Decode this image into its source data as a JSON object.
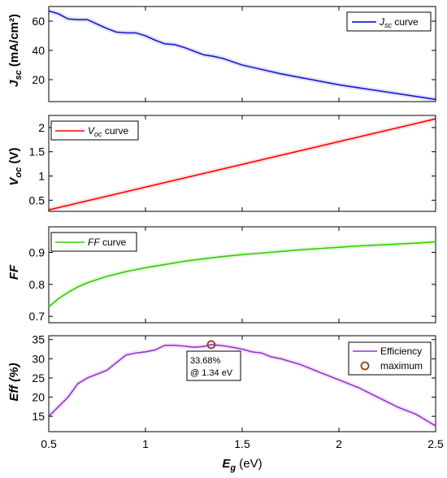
{
  "chart_data": [
    {
      "type": "line",
      "ylabel": "J_sc (mA/cm²)",
      "xlim": [
        0.5,
        2.5
      ],
      "ylim": [
        5,
        70
      ],
      "yticks": [
        20,
        40,
        60
      ],
      "legend": {
        "placement": "top-right",
        "entries": [
          {
            "label": "J_sc curve",
            "color": "#0000cc"
          }
        ]
      },
      "series": [
        {
          "name": "J_sc curve",
          "color": "#1a1acc",
          "x": [
            0.5,
            0.55,
            0.6,
            0.65,
            0.7,
            0.75,
            0.8,
            0.85,
            0.9,
            0.95,
            1.0,
            1.05,
            1.1,
            1.15,
            1.2,
            1.25,
            1.3,
            1.35,
            1.4,
            1.5,
            1.6,
            1.7,
            1.8,
            1.9,
            2.0,
            2.1,
            2.2,
            2.3,
            2.4,
            2.5
          ],
          "y": [
            67,
            65,
            61.5,
            61,
            61,
            58,
            55,
            52.5,
            52,
            52,
            50,
            47,
            44.5,
            44,
            42,
            39.5,
            37,
            36,
            34.5,
            30,
            27,
            24,
            21.5,
            19,
            16.5,
            14.5,
            12.5,
            10.5,
            8.5,
            6.5
          ]
        }
      ]
    },
    {
      "type": "line",
      "ylabel": "V_oc (V)",
      "xlim": [
        0.5,
        2.5
      ],
      "ylim": [
        0.27,
        2.25
      ],
      "yticks": [
        0.5,
        1,
        1.5,
        2
      ],
      "ytick_labels": [
        "0.5",
        "1",
        "1.5",
        "2"
      ],
      "legend": {
        "placement": "top-left",
        "entries": [
          {
            "label": "V_oc curve",
            "color": "#ff0000"
          }
        ]
      },
      "series": [
        {
          "name": "V_oc curve",
          "color": "#ff0000",
          "x": [
            0.5,
            2.5
          ],
          "y": [
            0.3,
            2.18
          ]
        }
      ]
    },
    {
      "type": "line",
      "ylabel": "FF",
      "xlim": [
        0.5,
        2.5
      ],
      "ylim": [
        0.68,
        0.98
      ],
      "yticks": [
        0.7,
        0.8,
        0.9
      ],
      "legend": {
        "placement": "top-left",
        "entries": [
          {
            "label": "FF curve",
            "color": "#33cc00"
          }
        ]
      },
      "series": [
        {
          "name": "FF curve",
          "color": "#33cc00",
          "x": [
            0.5,
            0.55,
            0.6,
            0.65,
            0.7,
            0.8,
            0.9,
            1.0,
            1.1,
            1.2,
            1.3,
            1.4,
            1.5,
            1.6,
            1.7,
            1.8,
            1.9,
            2.0,
            2.1,
            2.2,
            2.3,
            2.4,
            2.5
          ],
          "y": [
            0.73,
            0.755,
            0.775,
            0.792,
            0.805,
            0.825,
            0.84,
            0.852,
            0.862,
            0.872,
            0.88,
            0.887,
            0.893,
            0.898,
            0.903,
            0.908,
            0.912,
            0.916,
            0.92,
            0.923,
            0.926,
            0.929,
            0.933
          ]
        }
      ]
    },
    {
      "type": "line",
      "ylabel": "Eff (%)",
      "xlabel": "E_g (eV)",
      "xlim": [
        0.5,
        2.5
      ],
      "ylim": [
        11,
        36
      ],
      "yticks": [
        15,
        20,
        25,
        30,
        35
      ],
      "xticks": [
        0.5,
        1,
        1.5,
        2,
        2.5
      ],
      "xtick_labels": [
        "0.5",
        "1",
        "1.5",
        "2",
        "2.5"
      ],
      "legend": {
        "placement": "top-right",
        "entries": [
          {
            "label": "Efficiency",
            "color": "#9933cc"
          },
          {
            "label": "maximum",
            "color": "#8b4513",
            "marker": "circle"
          }
        ]
      },
      "series": [
        {
          "name": "Efficiency",
          "color": "#9933cc",
          "x": [
            0.5,
            0.55,
            0.6,
            0.65,
            0.7,
            0.75,
            0.8,
            0.85,
            0.9,
            0.95,
            1.0,
            1.05,
            1.1,
            1.15,
            1.2,
            1.25,
            1.3,
            1.34,
            1.4,
            1.45,
            1.5,
            1.55,
            1.6,
            1.65,
            1.7,
            1.8,
            1.9,
            2.0,
            2.1,
            2.2,
            2.3,
            2.4,
            2.5
          ],
          "y": [
            15,
            17.5,
            20,
            23.5,
            25,
            26,
            27,
            29,
            31,
            31.5,
            31.8,
            32.3,
            33.5,
            33.5,
            33.3,
            33,
            33.2,
            33.68,
            33.4,
            33,
            32.5,
            31.8,
            31.5,
            30.5,
            30,
            28.5,
            26.5,
            24.5,
            22.5,
            20,
            17.5,
            15.5,
            12.5
          ]
        }
      ],
      "annotation": {
        "x": 1.34,
        "y": 33.68,
        "value_text": "33.68%",
        "at_text": "@ 1.34 eV"
      }
    }
  ],
  "text": {
    "jsc_sym": "J",
    "jsc_sub": "sc",
    "jsc_unit": " (mA/cm²)",
    "jsc_legend_sym": "J",
    "jsc_legend_sub": "sc",
    "jsc_legend_rest": " curve",
    "voc_sym": "V",
    "voc_sub": "oc",
    "voc_unit": " (V)",
    "voc_legend_sym": "V",
    "voc_legend_sub": "oc",
    "voc_legend_rest": " curve",
    "ff_label": "FF",
    "ff_legend_sym": "FF",
    "ff_legend_rest": " curve",
    "eff_label": "Eff (%)",
    "eff_legend_1": "Efficiency",
    "eff_legend_2": "maximum",
    "xlabel_sym": "E",
    "xlabel_sub": "g",
    "xlabel_unit": " (eV)",
    "annot_value": "33.68%",
    "annot_at": "@ 1.34 eV"
  }
}
